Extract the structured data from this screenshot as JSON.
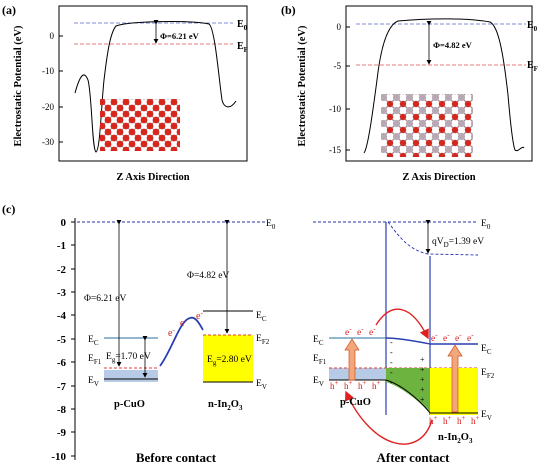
{
  "panel_a": {
    "tag": "(a)",
    "ylabel": "Electrostatic Potential (eV)",
    "xlabel": "Z Axis Direction",
    "yticks": [
      "0",
      "-10",
      "-20",
      "-30"
    ],
    "e0": "E",
    "e0_sub": "0",
    "ef": "E",
    "ef_sub": "F",
    "phi": "Φ=6.21 eV"
  },
  "panel_b": {
    "tag": "(b)",
    "ylabel": "Electrostatic Potential (eV)",
    "xlabel": "Z Axis Direction",
    "yticks": [
      "0",
      "-5",
      "-10",
      "-15"
    ],
    "e0": "E",
    "e0_sub": "0",
    "ef": "E",
    "ef_sub": "F",
    "phi": "Φ=4.82 eV"
  },
  "panel_c": {
    "tag": "(c)",
    "yticks": [
      "0",
      "-1",
      "-2",
      "-3",
      "-4",
      "-5",
      "-6",
      "-7",
      "-8",
      "-9",
      "-10"
    ],
    "before": {
      "title": "Before contact",
      "phi_cuo": "Φ=6.21 eV",
      "phi_in2o3": "Φ=4.82 eV",
      "eg_cuo": "E",
      "eg_cuo_sub": "g",
      "eg_cuo_val": "=1.70 eV",
      "eg_in2o3": "E",
      "eg_in2o3_sub": "g",
      "eg_in2o3_val": "=2.80 eV",
      "cuo_label": "p-CuO",
      "in2o3_label": "n-In",
      "in2o3_sub1": "2",
      "in2o3_mid": "O",
      "in2o3_sub2": "3",
      "e0": "E",
      "e0_sub": "0",
      "ec": "E",
      "ec_sub": "C",
      "ev": "E",
      "ev_sub": "V",
      "ef1": "E",
      "ef1_sub": "F1",
      "ef2": "E",
      "ef2_sub": "F2",
      "electron": "e",
      "electron_sup": "-"
    },
    "after": {
      "title": "After contact",
      "qvd": "qV",
      "qvd_sub": "D",
      "qvd_val": "=1.39 eV",
      "cuo_label": "p-CuO",
      "in2o3_label": "n-In",
      "in2o3_sub1": "2",
      "in2o3_mid": "O",
      "in2o3_sub2": "3",
      "e0": "E",
      "e0_sub": "0",
      "ec": "E",
      "ec_sub": "C",
      "ev": "E",
      "ev_sub": "V",
      "ef1": "E",
      "ef1_sub": "F1",
      "ef2": "E",
      "ef2_sub": "F2",
      "electron": "e",
      "electron_sup": "-",
      "hole": "h",
      "hole_sup": "+",
      "minus": "-",
      "plus": "+"
    }
  },
  "colors": {
    "vacuum": "#2233aa",
    "fermi": "#e03c3c",
    "curve": "#000000",
    "band_blue": "#2a3fb0",
    "cuo_fill": "#b7cbe6",
    "in2o3_fill": "#ffff00",
    "depletion": "#6db33f",
    "arrow_red": "#e02020",
    "arrow_orange": "#f2a77a"
  }
}
